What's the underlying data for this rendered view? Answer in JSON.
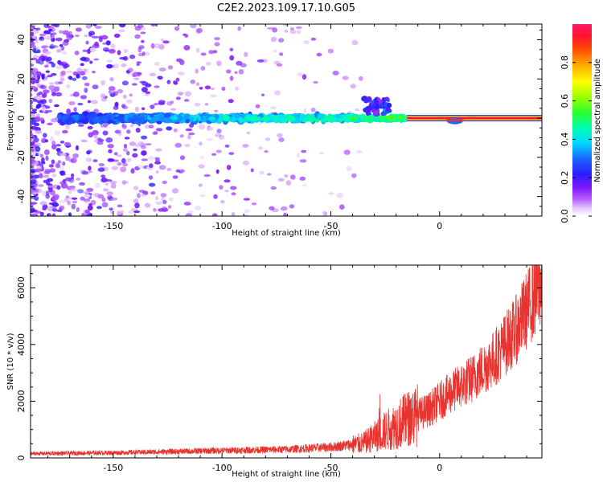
{
  "title": "C2E2.2023.109.17.10.G05",
  "chart_data": [
    {
      "type": "heatmap",
      "name": "spectrogram",
      "xlabel": "Height of straight line (km)",
      "ylabel": "Frequency (Hz)",
      "xlim": [
        -188,
        47
      ],
      "ylim": [
        -50,
        48
      ],
      "xticks": [
        -150,
        -100,
        -50,
        0
      ],
      "yticks": [
        -40,
        -20,
        0,
        20,
        40
      ],
      "colorbar": {
        "label": "Normalized spectral amplitude",
        "range": [
          0,
          1
        ],
        "ticks": [
          "0.0",
          "0.2",
          "0.4",
          "0.6",
          "0.8"
        ],
        "tick_values": [
          0.0,
          0.2,
          0.4,
          0.6,
          0.8
        ]
      },
      "ridge_frequency_hz": 0,
      "ridge_x_range": [
        -188,
        47
      ],
      "scatter_extent_x": [
        -188,
        -25
      ]
    },
    {
      "type": "line",
      "name": "snr",
      "xlabel": "Height of straight line (km)",
      "ylabel": "SNR (10 * v/v)",
      "xlim": [
        -188,
        47
      ],
      "ylim": [
        0,
        6800
      ],
      "xticks": [
        -150,
        -100,
        -50,
        0
      ],
      "yticks": [
        0,
        2000,
        4000,
        6000
      ],
      "color": "#e8332f",
      "trend": {
        "x": [
          -188,
          -150,
          -100,
          -70,
          -50,
          -35,
          -25,
          -15,
          -5,
          5,
          15,
          25,
          35,
          40,
          45,
          47
        ],
        "y": [
          150,
          180,
          260,
          300,
          380,
          520,
          950,
          1350,
          1700,
          2300,
          2800,
          3500,
          4500,
          5200,
          5900,
          6300
        ]
      }
    }
  ]
}
